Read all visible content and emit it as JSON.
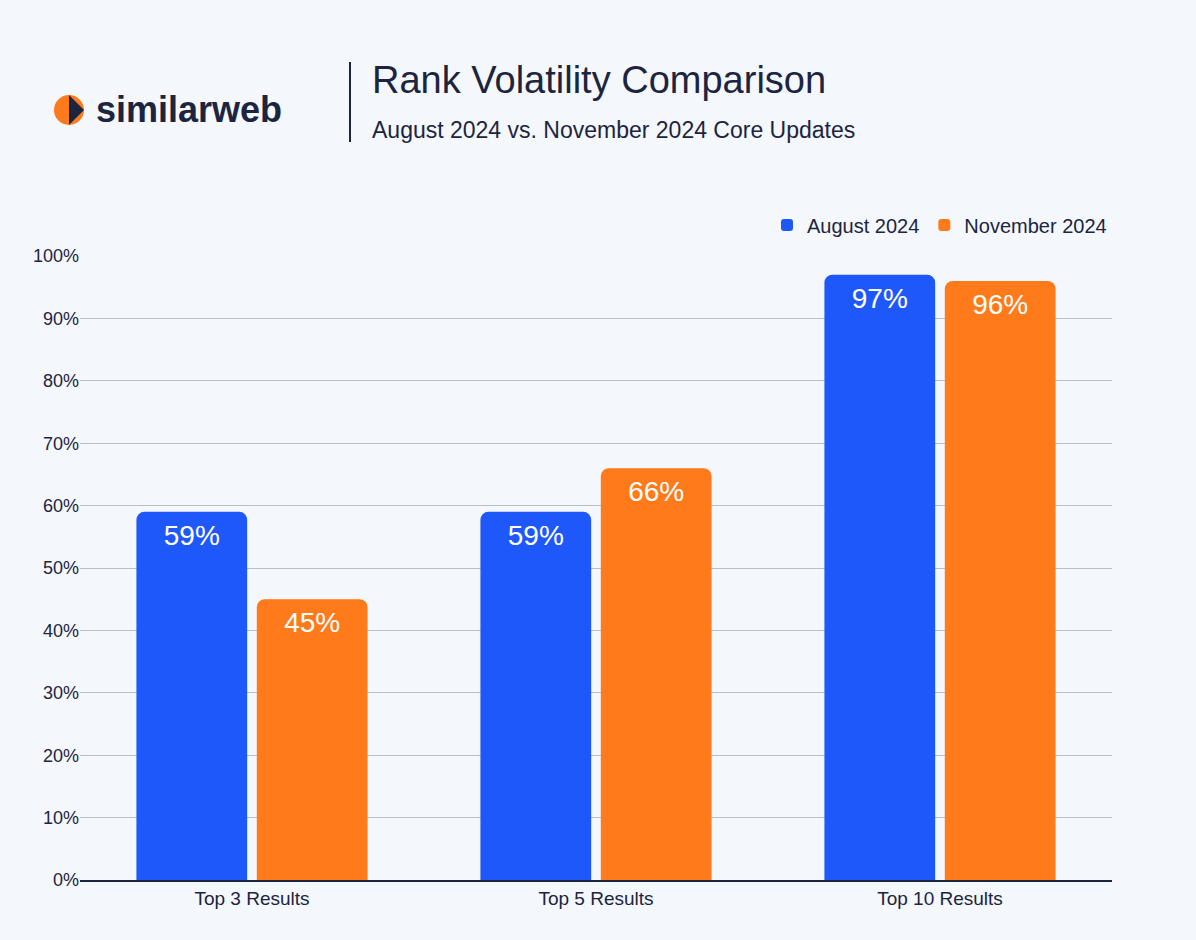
{
  "brand": "similarweb",
  "chart_data": {
    "type": "bar",
    "title": "Rank Volatility Comparison",
    "subtitle": "August 2024 vs. November 2024 Core Updates",
    "categories": [
      "Top 3 Results",
      "Top 5 Results",
      "Top 10 Results"
    ],
    "series": [
      {
        "name": "August 2024",
        "color": "#1f58fa",
        "values": [
          59,
          59,
          97
        ],
        "value_labels": [
          "59%",
          "59%",
          "97%"
        ]
      },
      {
        "name": "November 2024",
        "color": "#ff7a1a",
        "values": [
          45,
          66,
          96
        ],
        "value_labels": [
          "45%",
          "66%",
          "96%"
        ]
      }
    ],
    "ylim": [
      0,
      100
    ],
    "yticks": [
      {
        "value": 0,
        "label": "0%"
      },
      {
        "value": 10,
        "label": "10%"
      },
      {
        "value": 20,
        "label": "20%"
      },
      {
        "value": 30,
        "label": "30%"
      },
      {
        "value": 40,
        "label": "40%"
      },
      {
        "value": 50,
        "label": "50%"
      },
      {
        "value": 60,
        "label": "60%"
      },
      {
        "value": 70,
        "label": "70%"
      },
      {
        "value": 80,
        "label": "80%"
      },
      {
        "value": 90,
        "label": "90%"
      },
      {
        "value": 100,
        "label": "100%"
      }
    ],
    "grid": true,
    "legend": "top right",
    "data_labels": true
  }
}
